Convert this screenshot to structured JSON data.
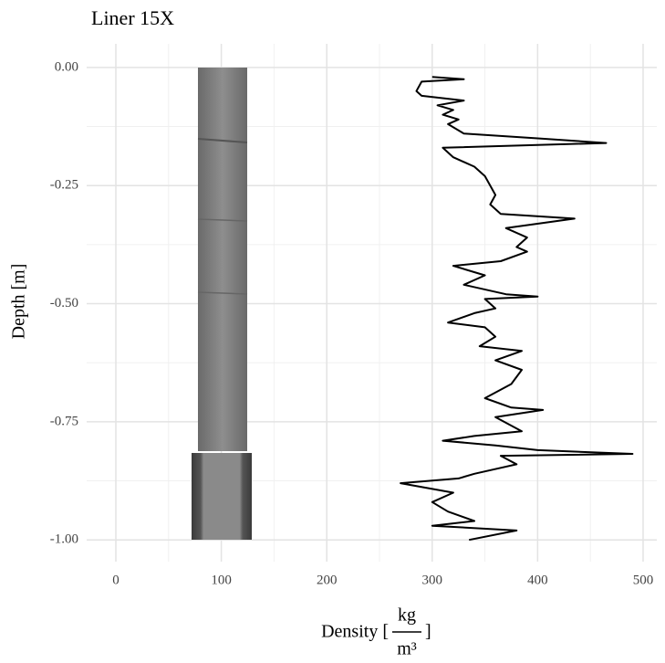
{
  "chart_data": {
    "type": "line",
    "title": "Liner 15X",
    "y_label": "Depth [m]",
    "x_label": {
      "prefix": "Density [",
      "numerator": "kg",
      "denominator": "m³",
      "suffix": "]"
    },
    "depth": [
      -0.02,
      -0.025,
      -0.03,
      -0.05,
      -0.06,
      -0.07,
      -0.08,
      -0.09,
      -0.1,
      -0.11,
      -0.12,
      -0.14,
      -0.15,
      -0.16,
      -0.17,
      -0.19,
      -0.21,
      -0.23,
      -0.25,
      -0.27,
      -0.29,
      -0.31,
      -0.32,
      -0.34,
      -0.36,
      -0.38,
      -0.39,
      -0.41,
      -0.42,
      -0.44,
      -0.46,
      -0.48,
      -0.485,
      -0.49,
      -0.51,
      -0.52,
      -0.54,
      -0.55,
      -0.57,
      -0.59,
      -0.6,
      -0.62,
      -0.64,
      -0.67,
      -0.7,
      -0.72,
      -0.725,
      -0.74,
      -0.77,
      -0.78,
      -0.79,
      -0.8,
      -0.81,
      -0.818,
      -0.822,
      -0.84,
      -0.86,
      -0.87,
      -0.88,
      -0.9,
      -0.92,
      -0.94,
      -0.96,
      -0.97,
      -0.98,
      -1.0
    ],
    "values": [
      300,
      330,
      290,
      285,
      290,
      330,
      305,
      320,
      310,
      325,
      315,
      330,
      400,
      465,
      310,
      320,
      340,
      350,
      355,
      360,
      355,
      365,
      435,
      370,
      390,
      380,
      390,
      365,
      320,
      350,
      330,
      370,
      400,
      350,
      360,
      340,
      315,
      350,
      360,
      345,
      385,
      360,
      385,
      375,
      350,
      375,
      405,
      360,
      385,
      340,
      310,
      360,
      400,
      490,
      365,
      380,
      340,
      325,
      270,
      320,
      300,
      315,
      340,
      300,
      380,
      335
    ],
    "color": "#000000",
    "xlim": [
      -27.7,
      513
    ],
    "xticks": [
      0,
      100,
      200,
      300,
      400,
      500
    ],
    "ylim": [
      -1.046,
      0.05
    ],
    "yticks": [
      {
        "value": 0,
        "label": "0.00"
      },
      {
        "value": -0.25,
        "label": "-0.25"
      },
      {
        "value": -0.5,
        "label": "-0.50"
      },
      {
        "value": -0.75,
        "label": "-0.75"
      },
      {
        "value": -1,
        "label": "-1.00"
      }
    ],
    "grid": true
  }
}
